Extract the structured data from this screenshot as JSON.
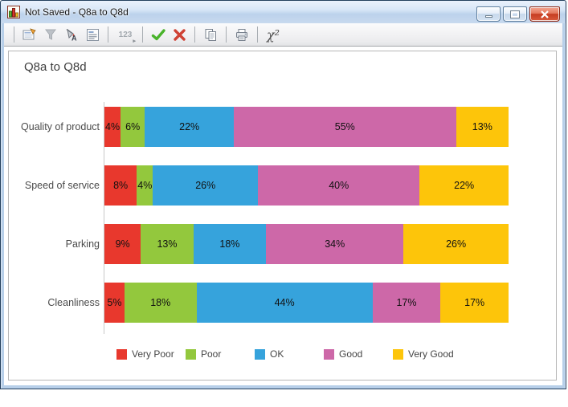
{
  "window": {
    "title": "Not Saved - Q8a to Q8d",
    "controls": [
      "minimize",
      "maximize",
      "close"
    ]
  },
  "toolbar": {
    "decimal_label": "123",
    "chi_label": "χ²",
    "items": [
      {
        "icon": "chart-properties-icon",
        "enabled": true
      },
      {
        "icon": "filter-icon",
        "enabled": false
      },
      {
        "icon": "fill-color-icon",
        "enabled": true
      },
      {
        "icon": "text-style-icon",
        "enabled": true
      },
      {
        "icon": "decimal-places-icon",
        "enabled": false
      },
      {
        "icon": "apply-check-icon",
        "enabled": true
      },
      {
        "icon": "cancel-x-icon",
        "enabled": true
      },
      {
        "icon": "copy-icon",
        "enabled": true
      },
      {
        "icon": "print-icon",
        "enabled": true
      },
      {
        "icon": "chi-square-icon",
        "enabled": true
      }
    ]
  },
  "chart_data": {
    "type": "bar",
    "orientation": "horizontal",
    "stacked": true,
    "title": "Q8a to Q8d",
    "categories": [
      "Quality of product",
      "Speed of service",
      "Parking",
      "Cleanliness"
    ],
    "series": [
      {
        "name": "Very Poor",
        "color": "#e8382d",
        "values": [
          4,
          8,
          9,
          5
        ]
      },
      {
        "name": "Poor",
        "color": "#93c83d",
        "values": [
          6,
          4,
          13,
          18
        ]
      },
      {
        "name": "OK",
        "color": "#36a3dc",
        "values": [
          22,
          26,
          18,
          44
        ]
      },
      {
        "name": "Good",
        "color": "#cd68a8",
        "values": [
          55,
          40,
          34,
          17
        ]
      },
      {
        "name": "Very Good",
        "color": "#fdc50a",
        "values": [
          13,
          22,
          26,
          17
        ]
      }
    ],
    "value_label_format": "{v}%",
    "xlim": [
      0,
      100
    ],
    "grid": false,
    "legend_position": "bottom"
  }
}
